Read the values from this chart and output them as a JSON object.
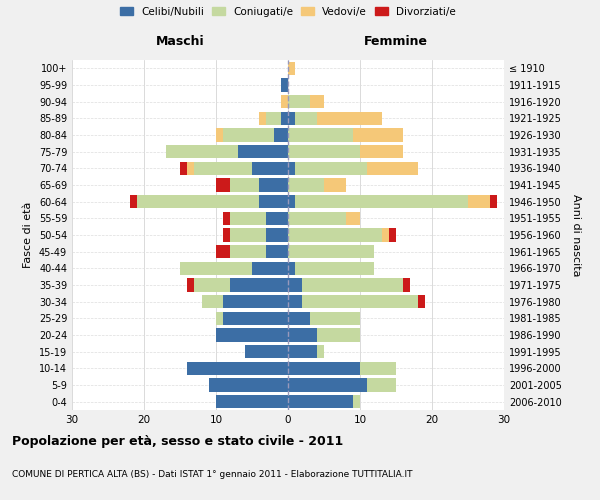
{
  "age_groups": [
    "0-4",
    "5-9",
    "10-14",
    "15-19",
    "20-24",
    "25-29",
    "30-34",
    "35-39",
    "40-44",
    "45-49",
    "50-54",
    "55-59",
    "60-64",
    "65-69",
    "70-74",
    "75-79",
    "80-84",
    "85-89",
    "90-94",
    "95-99",
    "100+"
  ],
  "birth_years": [
    "2006-2010",
    "2001-2005",
    "1996-2000",
    "1991-1995",
    "1986-1990",
    "1981-1985",
    "1976-1980",
    "1971-1975",
    "1966-1970",
    "1961-1965",
    "1956-1960",
    "1951-1955",
    "1946-1950",
    "1941-1945",
    "1936-1940",
    "1931-1935",
    "1926-1930",
    "1921-1925",
    "1916-1920",
    "1911-1915",
    "≤ 1910"
  ],
  "males": {
    "celibe": [
      10,
      11,
      14,
      6,
      10,
      9,
      9,
      8,
      5,
      3,
      3,
      3,
      4,
      4,
      5,
      7,
      2,
      1,
      0,
      1,
      0
    ],
    "coniugato": [
      0,
      0,
      0,
      0,
      0,
      1,
      3,
      5,
      10,
      5,
      5,
      5,
      17,
      4,
      8,
      10,
      7,
      2,
      0,
      0,
      0
    ],
    "vedovo": [
      0,
      0,
      0,
      0,
      0,
      0,
      0,
      0,
      0,
      0,
      0,
      0,
      0,
      0,
      1,
      0,
      1,
      1,
      1,
      0,
      0
    ],
    "divorziato": [
      0,
      0,
      0,
      0,
      0,
      0,
      0,
      1,
      0,
      2,
      1,
      1,
      1,
      2,
      1,
      0,
      0,
      0,
      0,
      0,
      0
    ]
  },
  "females": {
    "nubile": [
      9,
      11,
      10,
      4,
      4,
      3,
      2,
      2,
      1,
      0,
      0,
      0,
      1,
      0,
      1,
      0,
      0,
      1,
      0,
      0,
      0
    ],
    "coniugata": [
      1,
      4,
      5,
      1,
      6,
      7,
      16,
      14,
      11,
      12,
      13,
      8,
      24,
      5,
      10,
      10,
      9,
      3,
      3,
      0,
      0
    ],
    "vedova": [
      0,
      0,
      0,
      0,
      0,
      0,
      0,
      0,
      0,
      0,
      1,
      2,
      3,
      3,
      7,
      6,
      7,
      9,
      2,
      0,
      1
    ],
    "divorziata": [
      0,
      0,
      0,
      0,
      0,
      0,
      1,
      1,
      0,
      0,
      1,
      0,
      1,
      0,
      0,
      0,
      0,
      0,
      0,
      0,
      0
    ]
  },
  "colors": {
    "celibe": "#3c6ea5",
    "coniugato": "#c5d9a0",
    "vedovo": "#f5c878",
    "divorziato": "#cc1a1a"
  },
  "xlim": 30,
  "title": "Popolazione per età, sesso e stato civile - 2011",
  "subtitle": "COMUNE DI PERTICA ALTA (BS) - Dati ISTAT 1° gennaio 2011 - Elaborazione TUTTITALIA.IT",
  "ylabel_left": "Fasce di età",
  "ylabel_right": "Anni di nascita",
  "xlabel_maschi": "Maschi",
  "xlabel_femmine": "Femmine",
  "legend_labels": [
    "Celibi/Nubili",
    "Coniugati/e",
    "Vedovi/e",
    "Divorziati/e"
  ],
  "bg_color": "#f0f0f0",
  "plot_bg_color": "#ffffff"
}
